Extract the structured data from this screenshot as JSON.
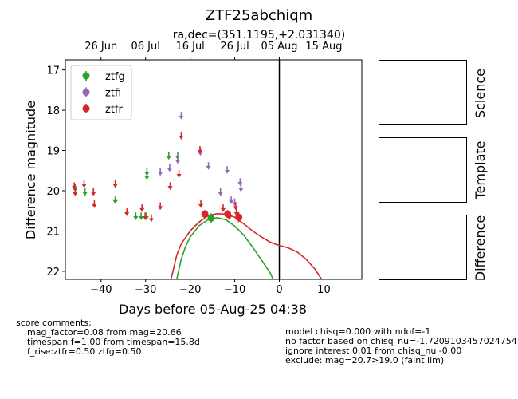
{
  "chart_data": {
    "type": "scatter",
    "title": "ZTF25abchiqm",
    "subtitle": "ra,dec=(351.1195,+2.031340)",
    "xlabel": "Days before 05-Aug-25 04:38",
    "ylabel": "Difference magnitude",
    "xlim": [
      -48,
      18.5
    ],
    "ylim": [
      22.2,
      16.75
    ],
    "y_inverted": true,
    "x_ticks": [
      -40,
      -30,
      -20,
      -10,
      0,
      10
    ],
    "y_ticks": [
      17,
      18,
      19,
      20,
      21,
      22
    ],
    "top_axis_ticks": [
      {
        "x": -40,
        "label": "26 Jun"
      },
      {
        "x": -30,
        "label": "06 Jul"
      },
      {
        "x": -20,
        "label": "16 Jul"
      },
      {
        "x": -10,
        "label": "26 Jul"
      },
      {
        "x": 0,
        "label": "05 Aug"
      },
      {
        "x": 10,
        "label": "15 Aug"
      }
    ],
    "vline_x": 0,
    "legend_position": "upper-left",
    "series": [
      {
        "name": "ztfg",
        "color": "#2ca02c",
        "limits": [
          [
            -45.8,
            19.9
          ],
          [
            -45.8,
            20.0
          ],
          [
            -43.6,
            20.0
          ],
          [
            -36.8,
            20.2
          ],
          [
            -32.2,
            20.6
          ],
          [
            -31.0,
            20.6
          ],
          [
            -29.8,
            20.6
          ],
          [
            -29.7,
            19.5
          ],
          [
            -29.7,
            19.6
          ],
          [
            -24.8,
            19.1
          ],
          [
            -22.8,
            19.1
          ]
        ],
        "detections": [
          {
            "x": -15.3,
            "y": 20.68,
            "err": 0.12
          }
        ]
      },
      {
        "name": "ztfi",
        "color": "#9467bd",
        "limits": [
          [
            -26.7,
            19.5
          ],
          [
            -24.6,
            19.4
          ],
          [
            -22.8,
            19.2
          ],
          [
            -22.0,
            18.1
          ],
          [
            -17.7,
            19.0
          ],
          [
            -15.9,
            19.35
          ],
          [
            -13.2,
            20.0
          ],
          [
            -11.7,
            19.45
          ],
          [
            -10.8,
            20.2
          ],
          [
            -10.0,
            20.25
          ],
          [
            -8.8,
            19.75
          ],
          [
            -8.6,
            19.9
          ]
        ],
        "detections": []
      },
      {
        "name": "ztfr",
        "color": "#d62728",
        "limits": [
          [
            -46.0,
            19.85
          ],
          [
            -45.8,
            20.0
          ],
          [
            -43.8,
            19.8
          ],
          [
            -41.7,
            20.0
          ],
          [
            -41.5,
            20.3
          ],
          [
            -36.8,
            19.8
          ],
          [
            -34.2,
            20.5
          ],
          [
            -30.8,
            20.4
          ],
          [
            -30.1,
            20.6
          ],
          [
            -28.7,
            20.65
          ],
          [
            -26.7,
            20.35
          ],
          [
            -24.5,
            19.85
          ],
          [
            -22.5,
            19.55
          ],
          [
            -22.0,
            18.6
          ],
          [
            -17.8,
            18.95
          ],
          [
            -17.6,
            20.3
          ],
          [
            -12.6,
            20.4
          ],
          [
            -11.2,
            20.6
          ],
          [
            -9.8,
            20.35
          ],
          [
            -9.6,
            20.5
          ]
        ],
        "detections": [
          {
            "x": -16.7,
            "y": 20.58,
            "err": 0.1
          },
          {
            "x": -11.6,
            "y": 20.58,
            "err": 0.1
          },
          {
            "x": -9.1,
            "y": 20.66,
            "err": 0.12
          }
        ]
      }
    ],
    "model_curves": [
      {
        "name": "ztfg model",
        "color": "#2ca02c",
        "points": [
          [
            -23,
            22.2
          ],
          [
            -22,
            21.7
          ],
          [
            -21,
            21.38
          ],
          [
            -20,
            21.15
          ],
          [
            -18,
            20.87
          ],
          [
            -16,
            20.72
          ],
          [
            -14,
            20.67
          ],
          [
            -12,
            20.72
          ],
          [
            -10,
            20.88
          ],
          [
            -8,
            21.1
          ],
          [
            -6,
            21.4
          ],
          [
            -4,
            21.72
          ],
          [
            -2,
            22.05
          ],
          [
            -1.4,
            22.2
          ]
        ]
      },
      {
        "name": "ztfr model",
        "color": "#d62728",
        "points": [
          [
            -24.3,
            22.2
          ],
          [
            -23,
            21.6
          ],
          [
            -22,
            21.32
          ],
          [
            -20,
            21.0
          ],
          [
            -18,
            20.78
          ],
          [
            -16,
            20.62
          ],
          [
            -14,
            20.57
          ],
          [
            -12,
            20.58
          ],
          [
            -10,
            20.66
          ],
          [
            -8,
            20.82
          ],
          [
            -6,
            21.0
          ],
          [
            -4,
            21.15
          ],
          [
            -2,
            21.28
          ],
          [
            0,
            21.36
          ],
          [
            2,
            21.42
          ],
          [
            4,
            21.52
          ],
          [
            6,
            21.7
          ],
          [
            8,
            21.95
          ],
          [
            9.5,
            22.2
          ]
        ]
      }
    ],
    "side_panels": [
      "Science",
      "Template",
      "Difference"
    ],
    "comments_left": "score comments:\n    mag_factor=0.08 from mag=20.66\n    timespan f=1.00 from timespan=15.8d\n    f_rise:ztfr=0.50 ztfg=0.50",
    "comments_right": "model chisq=0.000 with ndof=-1\nno factor based on chisq_nu=-1.7209103457024754\nignore interest 0.01 from chisq_nu -0.00\nexclude: mag=20.7>19.0 (faint lim)"
  }
}
